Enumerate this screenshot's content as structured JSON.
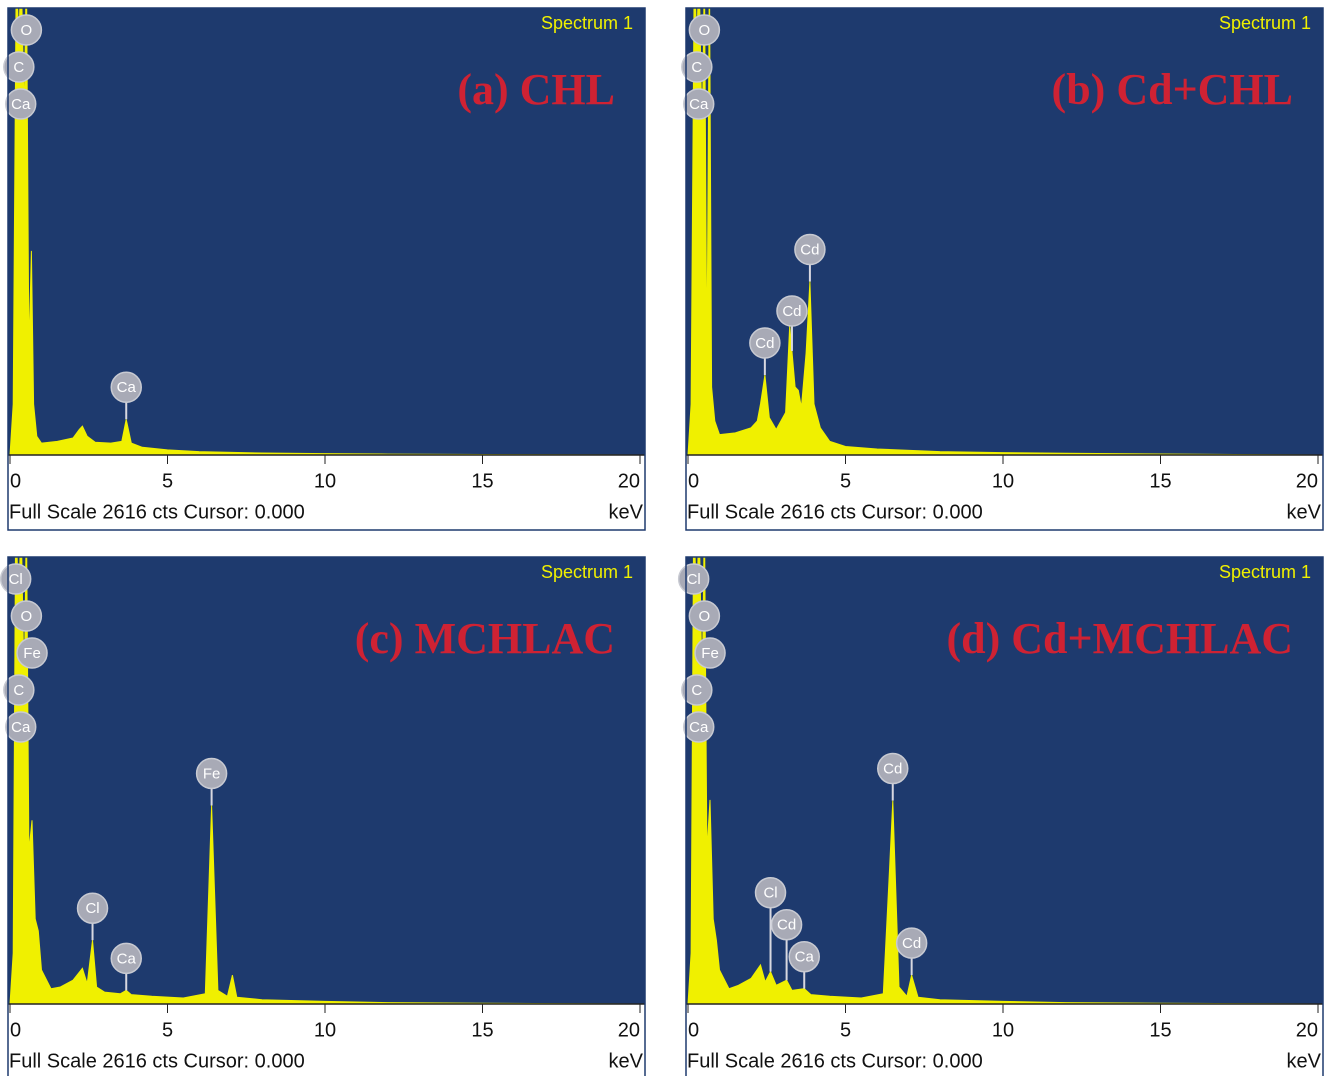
{
  "chart_data": [
    {
      "type": "area",
      "title": "(a) CHL",
      "spectrum_label": "Spectrum 1",
      "footer": "Full Scale 2616 cts Cursor: 0.000",
      "xlabel": "keV",
      "color": "#f0f000",
      "background": "#1e3a6e",
      "x": [
        0,
        0.1,
        0.2,
        0.28,
        0.35,
        0.45,
        0.52,
        0.6,
        0.68,
        0.75,
        0.85,
        1,
        1.5,
        2,
        2.2,
        2.3,
        2.45,
        2.7,
        3.2,
        3.55,
        3.69,
        3.85,
        4.2,
        5,
        6,
        8,
        10,
        12,
        15,
        20
      ],
      "values": [
        0,
        300,
        2900,
        2400,
        2900,
        2000,
        2900,
        600,
        1200,
        300,
        110,
        70,
        80,
        100,
        150,
        170,
        110,
        75,
        70,
        80,
        210,
        70,
        45,
        30,
        20,
        12,
        8,
        5,
        3,
        0
      ],
      "xlim": [
        0,
        20
      ],
      "xticks": [
        0,
        5,
        10,
        15,
        20
      ],
      "ylim": [
        0,
        2616
      ],
      "peak_labels": [
        {
          "label": "O",
          "x": 0.52
        },
        {
          "label": "C",
          "x": 0.28
        },
        {
          "label": "Ca",
          "x": 0.34
        },
        {
          "label": "Ca",
          "x": 3.69
        }
      ]
    },
    {
      "type": "area",
      "title": "(b) Cd+CHL",
      "spectrum_label": "Spectrum 1",
      "footer": "Full Scale 2616 cts Cursor: 0.000",
      "xlabel": "keV",
      "color": "#f0f000",
      "background": "#1e3a6e",
      "x": [
        0,
        0.1,
        0.2,
        0.28,
        0.35,
        0.45,
        0.52,
        0.6,
        0.68,
        0.75,
        0.85,
        1,
        1.5,
        2,
        2.2,
        2.3,
        2.44,
        2.58,
        2.8,
        3.1,
        3.23,
        3.4,
        3.5,
        3.6,
        3.75,
        3.87,
        4.0,
        4.2,
        4.5,
        5,
        6,
        8,
        10,
        12,
        15,
        20
      ],
      "values": [
        0,
        300,
        2900,
        2400,
        2900,
        1800,
        2900,
        500,
        2900,
        400,
        200,
        120,
        130,
        160,
        200,
        300,
        470,
        220,
        150,
        250,
        760,
        400,
        380,
        280,
        600,
        1020,
        300,
        160,
        80,
        50,
        35,
        20,
        14,
        10,
        6,
        0
      ],
      "xlim": [
        0,
        20
      ],
      "xticks": [
        0,
        5,
        10,
        15,
        20
      ],
      "ylim": [
        0,
        2616
      ],
      "peak_labels": [
        {
          "label": "O",
          "x": 0.52
        },
        {
          "label": "C",
          "x": 0.28
        },
        {
          "label": "Ca",
          "x": 0.34
        },
        {
          "label": "Cd",
          "x": 3.87
        },
        {
          "label": "Cd",
          "x": 3.3
        },
        {
          "label": "Cd",
          "x": 2.44
        }
      ]
    },
    {
      "type": "area",
      "title": "(c) MCHLAC",
      "spectrum_label": "Spectrum 1",
      "footer": "Full Scale 2616 cts Cursor: 0.000",
      "xlabel": "keV",
      "color": "#f0f000",
      "background": "#1e3a6e",
      "x": [
        0,
        0.1,
        0.18,
        0.28,
        0.35,
        0.45,
        0.52,
        0.6,
        0.7,
        0.8,
        0.9,
        1,
        1.3,
        1.6,
        2,
        2.3,
        2.45,
        2.62,
        2.75,
        3,
        3.5,
        3.69,
        3.85,
        4.5,
        5.5,
        6.2,
        6.4,
        6.6,
        6.9,
        7.06,
        7.2,
        8,
        10,
        12,
        15,
        20
      ],
      "values": [
        0,
        300,
        2900,
        2300,
        2900,
        1800,
        2900,
        900,
        1080,
        500,
        430,
        200,
        90,
        100,
        140,
        210,
        120,
        375,
        100,
        70,
        60,
        80,
        55,
        45,
        35,
        60,
        1167,
        80,
        45,
        170,
        40,
        25,
        15,
        8,
        4,
        0
      ],
      "xlim": [
        0,
        20
      ],
      "xticks": [
        0,
        5,
        10,
        15,
        20
      ],
      "ylim": [
        0,
        2616
      ],
      "peak_labels": [
        {
          "label": "Cl",
          "x": 0.18
        },
        {
          "label": "O",
          "x": 0.52
        },
        {
          "label": "Fe",
          "x": 0.7
        },
        {
          "label": "C",
          "x": 0.28
        },
        {
          "label": "Ca",
          "x": 0.34
        },
        {
          "label": "Fe",
          "x": 6.4
        },
        {
          "label": "Cl",
          "x": 2.62
        },
        {
          "label": "Ca",
          "x": 3.69
        }
      ]
    },
    {
      "type": "area",
      "title": "(d) Cd+MCHLAC",
      "spectrum_label": "Spectrum 1",
      "footer": "Full Scale 2616 cts Cursor: 0.000",
      "xlabel": "keV",
      "color": "#f0f000",
      "background": "#1e3a6e",
      "x": [
        0,
        0.1,
        0.18,
        0.28,
        0.35,
        0.45,
        0.52,
        0.6,
        0.7,
        0.8,
        0.9,
        1,
        1.3,
        1.6,
        2,
        2.3,
        2.45,
        2.62,
        2.8,
        3.13,
        3.3,
        3.69,
        3.9,
        4.5,
        5.5,
        6.2,
        6.4,
        6.5,
        6.7,
        6.95,
        7.1,
        7.3,
        8,
        10,
        12,
        15,
        20
      ],
      "values": [
        0,
        300,
        2900,
        2300,
        2900,
        1800,
        2900,
        900,
        1200,
        500,
        375,
        200,
        90,
        110,
        150,
        230,
        130,
        190,
        110,
        140,
        80,
        90,
        55,
        45,
        35,
        60,
        800,
        1196,
        100,
        45,
        170,
        40,
        25,
        15,
        8,
        4,
        0
      ],
      "xlim": [
        0,
        20
      ],
      "xticks": [
        0,
        5,
        10,
        15,
        20
      ],
      "ylim": [
        0,
        2616
      ],
      "peak_labels": [
        {
          "label": "Cl",
          "x": 0.18
        },
        {
          "label": "O",
          "x": 0.52
        },
        {
          "label": "Fe",
          "x": 0.7
        },
        {
          "label": "C",
          "x": 0.28
        },
        {
          "label": "Ca",
          "x": 0.34
        },
        {
          "label": "Cd",
          "x": 6.5
        },
        {
          "label": "Cl",
          "x": 2.62
        },
        {
          "label": "Cd",
          "x": 3.13
        },
        {
          "label": "Ca",
          "x": 3.69
        },
        {
          "label": "Cd",
          "x": 7.1
        }
      ]
    }
  ]
}
